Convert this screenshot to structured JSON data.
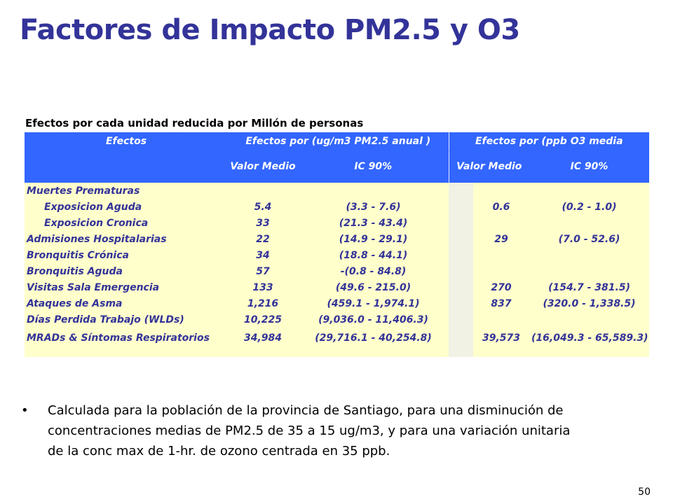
{
  "slide": {
    "title": "Factores de Impacto PM2.5 y O3",
    "page_number": "50"
  },
  "table": {
    "caption": "Efectos por cada unidad reducida por Millón de personas",
    "header": {
      "efectos": "Efectos",
      "pm25_group": "Efectos por (ug/m3 PM2.5 anual )",
      "o3_group": "Efectos por (ppb O3 media",
      "valor_medio": "Valor Medio",
      "ic90": "IC 90%",
      "valor_medio_o3": "Valor Medio",
      "ic90_o3": "IC 90%"
    },
    "rows": [
      {
        "effect": "Muertes Prematuras",
        "pm_value": "",
        "pm_ic": "",
        "o3_value": "",
        "o3_ic": ""
      },
      {
        "effect": "Exposicion Aguda",
        "pm_value": "5.4",
        "pm_ic": "(3.3  - 7.6)",
        "o3_value": "0.6",
        "o3_ic": "(0.2  - 1.0)"
      },
      {
        "effect": "Exposicion Cronica",
        "pm_value": "33",
        "pm_ic": "(21.3  - 43.4)",
        "o3_value": "",
        "o3_ic": ""
      },
      {
        "effect": "Admisiones Hospitalarias",
        "pm_value": "22",
        "pm_ic": "(14.9  - 29.1)",
        "o3_value": "29",
        "o3_ic": "(7.0  - 52.6)"
      },
      {
        "effect": "Bronquitis Crónica",
        "pm_value": "34",
        "pm_ic": "(18.8  - 44.1)",
        "o3_value": "",
        "o3_ic": ""
      },
      {
        "effect": "Bronquitis Aguda",
        "pm_value": "57",
        "pm_ic": "-(0.8  - 84.8)",
        "o3_value": "",
        "o3_ic": ""
      },
      {
        "effect": "Visitas Sala Emergencia",
        "pm_value": "133",
        "pm_ic": "(49.6  - 215.0)",
        "o3_value": "270",
        "o3_ic": "(154.7  - 381.5)"
      },
      {
        "effect": "Ataques de Asma",
        "pm_value": "1,216",
        "pm_ic": "(459.1  - 1,974.1)",
        "o3_value": "837",
        "o3_ic": "(320.0  - 1,338.5)"
      },
      {
        "effect": "Días Perdida Trabajo (WLDs)",
        "pm_value": "10,225",
        "pm_ic": "(9,036.0  - 11,406.3)",
        "o3_value": "",
        "o3_ic": ""
      },
      {
        "effect": "MRADs & Síntomas Respiratorios",
        "pm_value": "34,984",
        "pm_ic": "(29,716.1  - 40,254.8)",
        "o3_value": "39,573",
        "o3_ic": "(16,049.3  - 65,589.3)"
      }
    ]
  },
  "bullets": [
    "Calculada para la población de la provincia de Santiago, para una disminución de concentraciones medias de PM2.5 de 35 a 15 ug/m3, y para una variación unitaria de la conc max de 1-hr. de ozono centrada en 35 ppb."
  ],
  "bullet_symbol": "•",
  "colors": {
    "title": "#333399",
    "header_bg": "#3366ff",
    "header_text": "#ffffff",
    "body_bg": "#ffffcc",
    "body_text": "#333399"
  }
}
